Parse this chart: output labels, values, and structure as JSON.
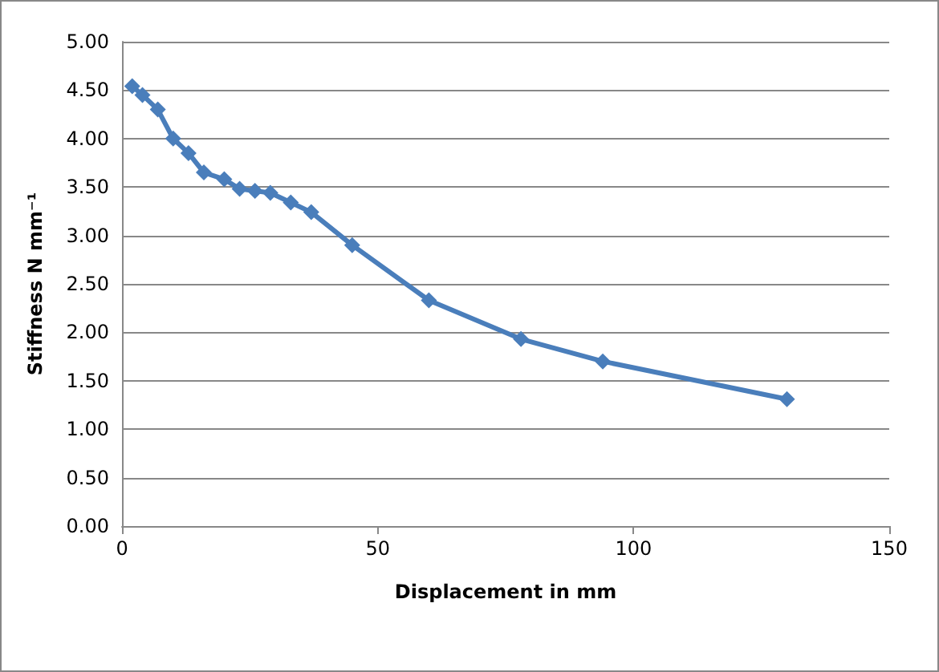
{
  "chart_data": {
    "type": "line",
    "xlabel": "Displacement in mm",
    "ylabel": "Stiffness N mm⁻¹",
    "x": [
      2,
      4,
      7,
      10,
      13,
      16,
      20,
      23,
      26,
      29,
      33,
      37,
      45,
      60,
      78,
      94,
      130
    ],
    "series": [
      {
        "color": "#4a7ebb",
        "values": [
          4.54,
          4.45,
          4.3,
          4.0,
          3.85,
          3.65,
          3.58,
          3.48,
          3.46,
          3.44,
          3.34,
          3.24,
          2.9,
          2.33,
          1.93,
          1.7,
          1.31
        ]
      }
    ],
    "xlim": [
      0,
      150
    ],
    "xticks": [
      0,
      50,
      100,
      150
    ],
    "ylim": [
      0,
      5
    ],
    "yticks": [
      {
        "value": 0,
        "label": "0.00"
      },
      {
        "value": 0.5,
        "label": "0.50"
      },
      {
        "value": 1,
        "label": "1.00"
      },
      {
        "value": 1.5,
        "label": "1.50"
      },
      {
        "value": 2,
        "label": "2.00"
      },
      {
        "value": 2.5,
        "label": "2.50"
      },
      {
        "value": 3,
        "label": "3.00"
      },
      {
        "value": 3.5,
        "label": "3.50"
      },
      {
        "value": 4,
        "label": "4.00"
      },
      {
        "value": 4.5,
        "label": "4.50"
      },
      {
        "value": 5,
        "label": "5.00"
      }
    ],
    "grid": "y",
    "marker": "diamond",
    "line_style": "solid"
  }
}
